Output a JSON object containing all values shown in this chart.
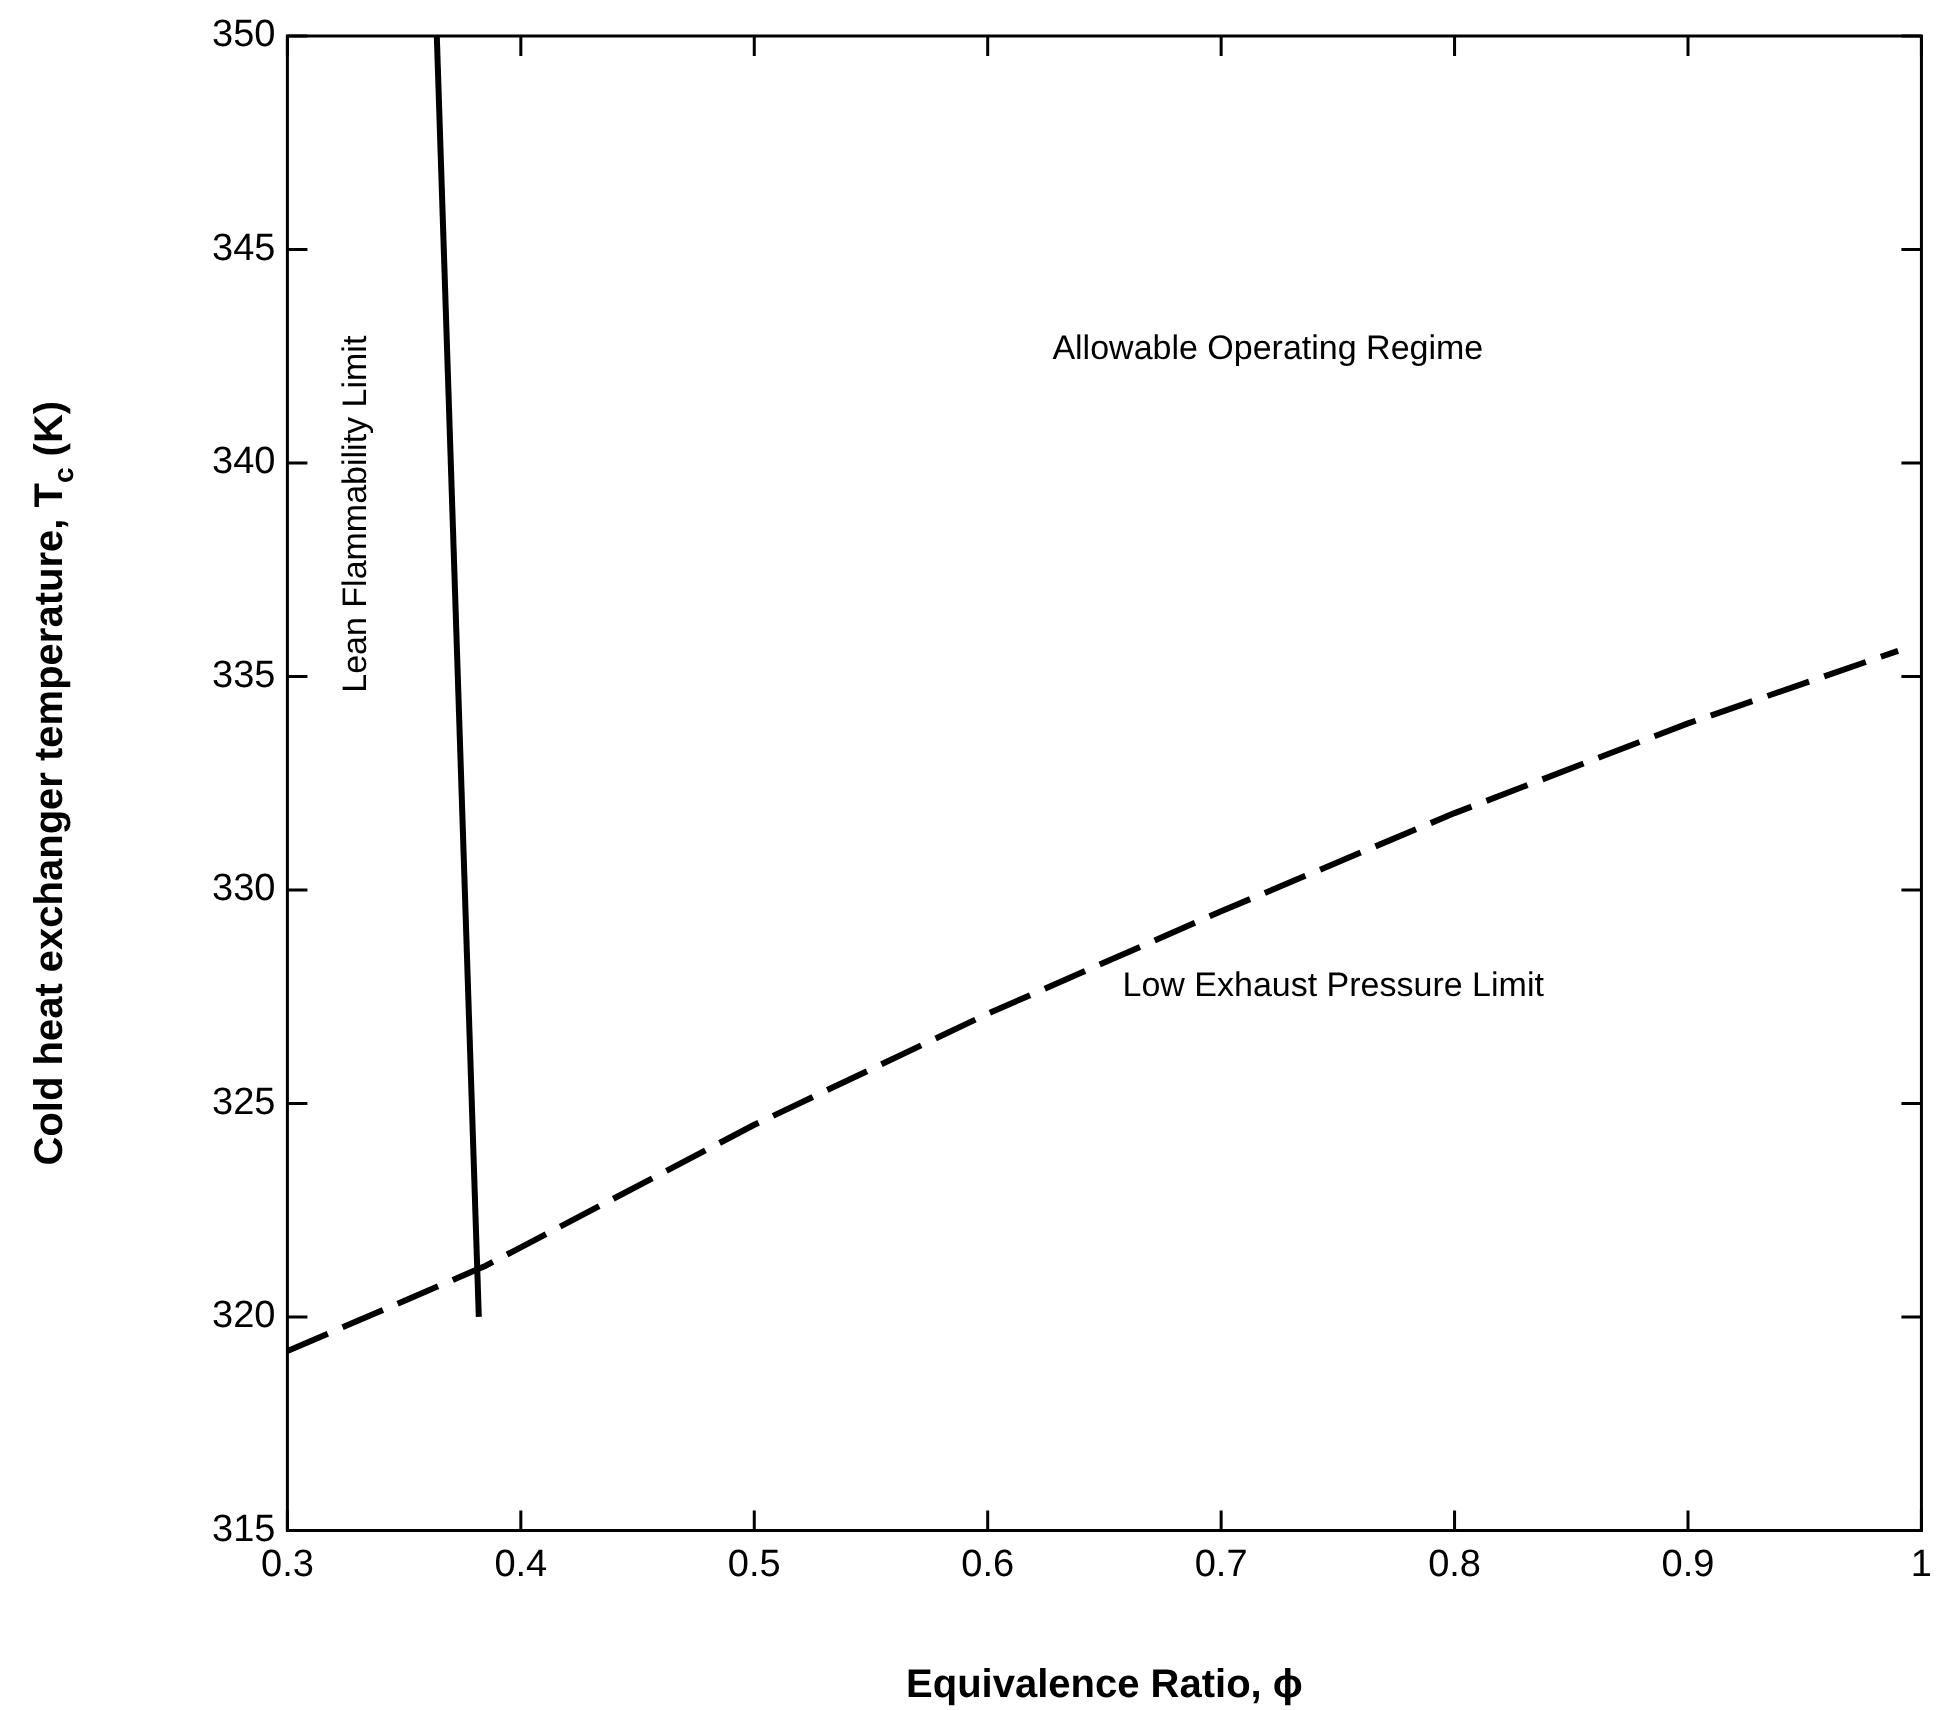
{
  "chart_data": {
    "type": "line",
    "xlabel": "Equivalence Ratio, ϕ",
    "ylabel": "Cold heat exchanger temperature, T$_{c}$ (K)",
    "series": [
      {
        "name": "Lean Flammability Limit",
        "color": "#000000",
        "line_style": "solid",
        "x": [
          0.364,
          0.382
        ],
        "values": [
          350,
          320
        ]
      },
      {
        "name": "Low Exhaust Pressure Limit",
        "color": "#000000",
        "line_style": "dashed",
        "x": [
          0.3,
          0.385,
          0.5,
          0.6,
          0.7,
          0.8,
          0.9,
          0.99
        ],
        "values": [
          319.2,
          321.2,
          324.5,
          327.1,
          329.5,
          331.8,
          333.9,
          335.6
        ]
      }
    ],
    "annotations": [
      "Allowable Operating Regime"
    ],
    "xlim": [
      0.3,
      1
    ],
    "xticks": [
      0.3,
      0.4,
      0.5,
      0.6,
      0.7,
      0.8,
      0.9,
      1
    ],
    "ylim": [
      315,
      350
    ],
    "yticks": [
      315,
      320,
      325,
      330,
      335,
      340,
      345,
      350
    ],
    "grid": false,
    "legend": false,
    "marker": "none"
  }
}
